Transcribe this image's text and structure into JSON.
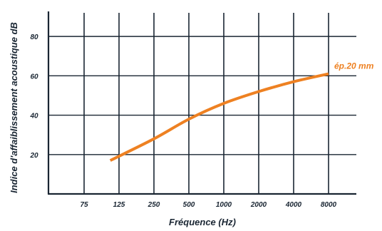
{
  "chart_data": {
    "type": "line",
    "title": "",
    "xlabel": "Fréquence (Hz)",
    "ylabel": "Indice d'affaiblissement acoustique dB",
    "x_scale": "log",
    "x_ticks": [
      "75",
      "125",
      "250",
      "500",
      "1000",
      "2000",
      "4000",
      "8000"
    ],
    "y_ticks": [
      20,
      40,
      60,
      80
    ],
    "ylim": [
      0,
      92
    ],
    "grid": true,
    "series": [
      {
        "name": "ép.20 mm",
        "color": "#ee8122",
        "points": [
          {
            "x": 105,
            "y": 17
          },
          {
            "x": 250,
            "y": 28
          },
          {
            "x": 500,
            "y": 38
          },
          {
            "x": 1000,
            "y": 46
          },
          {
            "x": 2000,
            "y": 52
          },
          {
            "x": 4000,
            "y": 57
          },
          {
            "x": 8000,
            "y": 61
          }
        ]
      }
    ]
  }
}
